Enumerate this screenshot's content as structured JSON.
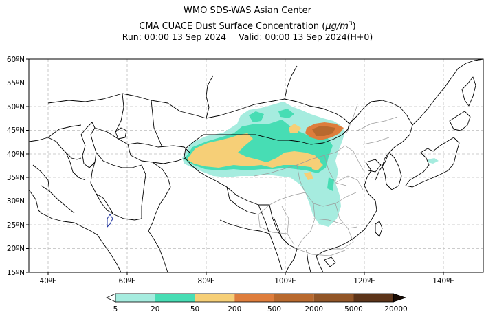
{
  "header": {
    "title": "WMO SDS-WAS Asian Center",
    "subtitle_prefix": "CMA CUACE Dust Surface Concentration (",
    "subtitle_unit_mu": "μg/m",
    "subtitle_unit_exp": "3",
    "subtitle_suffix": ")",
    "run": "Run: 00:00 13 Sep 2024",
    "valid": "Valid: 00:00 13 Sep 2024(H+0)"
  },
  "map": {
    "lon_range": [
      35,
      150
    ],
    "lat_range": [
      15,
      60
    ],
    "lat_labels": [
      "60ºN",
      "55ºN",
      "50ºN",
      "45ºN",
      "40ºN",
      "35ºN",
      "30ºN",
      "25ºN",
      "20ºN",
      "15ºN"
    ],
    "lon_labels": [
      "40ºE",
      "60ºE",
      "80ºE",
      "100ºE",
      "120ºE",
      "140ºE"
    ],
    "grid": true
  },
  "colorbar": {
    "levels": [
      "5",
      "20",
      "50",
      "200",
      "500",
      "2000",
      "5000",
      "20000"
    ],
    "colors": [
      "#a6ecdf",
      "#47ddb4",
      "#f6cf77",
      "#de7d3c",
      "#b8692e",
      "#915527",
      "#5c3419",
      "#2e1a0c"
    ],
    "under_color": "#ffffff",
    "over_color": "#1a0d05"
  },
  "colors": {
    "level1": "#a6ecdf",
    "level2": "#47ddb4",
    "level3": "#f6cf77",
    "level4": "#de7d3c",
    "level5": "#b8692e",
    "boundary": "#000000",
    "province": "#9a9a9a",
    "grid": "#bcbcbc"
  }
}
